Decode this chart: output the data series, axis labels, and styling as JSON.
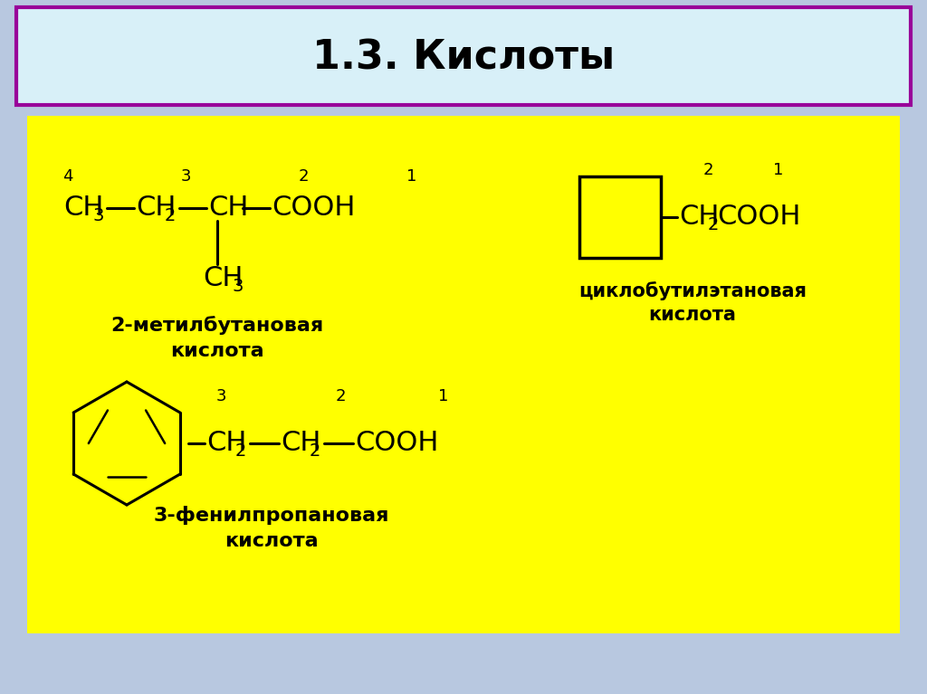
{
  "title": "1.3. Кислоты",
  "bg_color": "#b8c8e0",
  "title_bg": "#d8f0f8",
  "title_border_color": "#990099",
  "yellow_bg": "#ffff00",
  "text_color": "#000000",
  "formula1_label_line1": "2-метилбутановая",
  "formula1_label_line2": "кислота",
  "formula2_label_line1": "циклобутилэтановая",
  "formula2_label_line2": "кислота",
  "formula3_label_line1": "3-фенилпропановая",
  "formula3_label_line2": "кислота"
}
